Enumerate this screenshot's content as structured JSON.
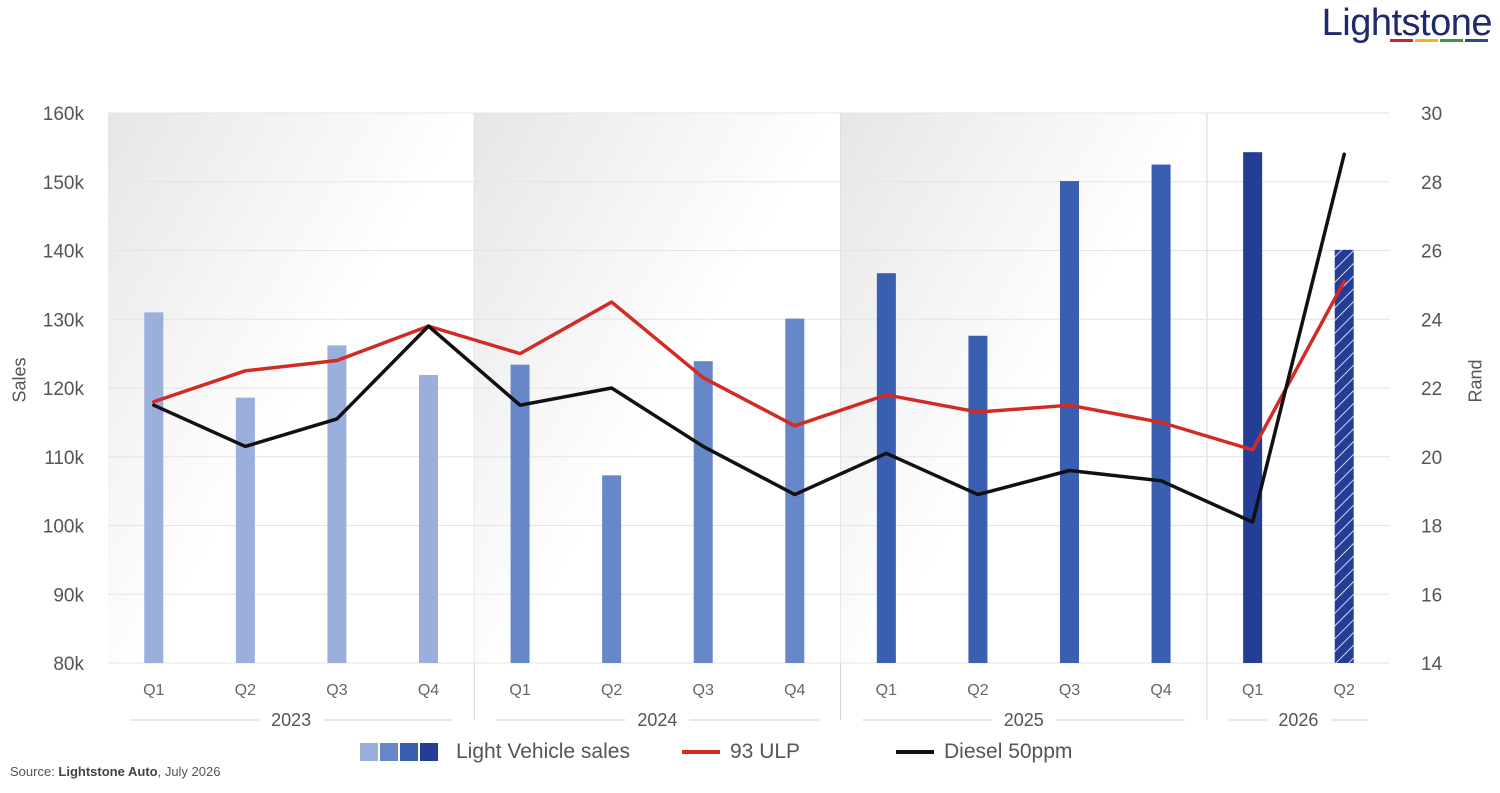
{
  "logo": {
    "text": "Lightstone",
    "colors": [
      "#c8262a",
      "#f2b21c",
      "#3a9a3a",
      "#2a4aa0"
    ]
  },
  "source": {
    "prefix": "Source: ",
    "org": "Lightstone Auto",
    "suffix": ", July 2026"
  },
  "chart_data": {
    "type": "bar",
    "ylabel": "Sales",
    "y2label": "Rand",
    "ylim": [
      80000,
      160000
    ],
    "y2lim": [
      14,
      30
    ],
    "y_ticks": [
      "80k",
      "90k",
      "100k",
      "110k",
      "120k",
      "130k",
      "140k",
      "150k",
      "160k"
    ],
    "y2_ticks": [
      "14",
      "16",
      "18",
      "20",
      "22",
      "24",
      "26",
      "28",
      "30"
    ],
    "categories": [
      "Q1",
      "Q2",
      "Q3",
      "Q4",
      "Q1",
      "Q2",
      "Q3",
      "Q4",
      "Q1",
      "Q2",
      "Q3",
      "Q4",
      "Q1",
      "Q2"
    ],
    "groups": [
      {
        "label": "2023",
        "count": 4,
        "shaded": true
      },
      {
        "label": "2024",
        "count": 4,
        "shaded": true
      },
      {
        "label": "2025",
        "count": 4,
        "shaded": true
      },
      {
        "label": "2026",
        "count": 2,
        "shaded": false
      }
    ],
    "bar_colors": [
      "#9aafdc",
      "#6687c8",
      "#3a5eb0",
      "#243d96"
    ],
    "grid": true,
    "series": [
      {
        "name": "Light Vehicle sales",
        "axis": "left",
        "type": "bar",
        "values": [
          131000,
          118600,
          126200,
          121900,
          123400,
          107300,
          123900,
          130100,
          136700,
          127600,
          150100,
          152500,
          154300,
          140100
        ],
        "hatched_last": true
      },
      {
        "name": "93 ULP",
        "axis": "right",
        "type": "line",
        "color": "#d22b25",
        "values": [
          21.6,
          22.5,
          22.8,
          23.8,
          23.0,
          24.5,
          22.3,
          20.9,
          21.8,
          21.3,
          21.5,
          21.0,
          20.2,
          25.1
        ]
      },
      {
        "name": "Diesel 50ppm",
        "axis": "right",
        "type": "line",
        "color": "#111111",
        "values": [
          21.5,
          20.3,
          21.1,
          23.8,
          21.5,
          22.0,
          20.3,
          18.9,
          20.1,
          18.9,
          19.6,
          19.3,
          18.1,
          28.8
        ]
      }
    ]
  }
}
